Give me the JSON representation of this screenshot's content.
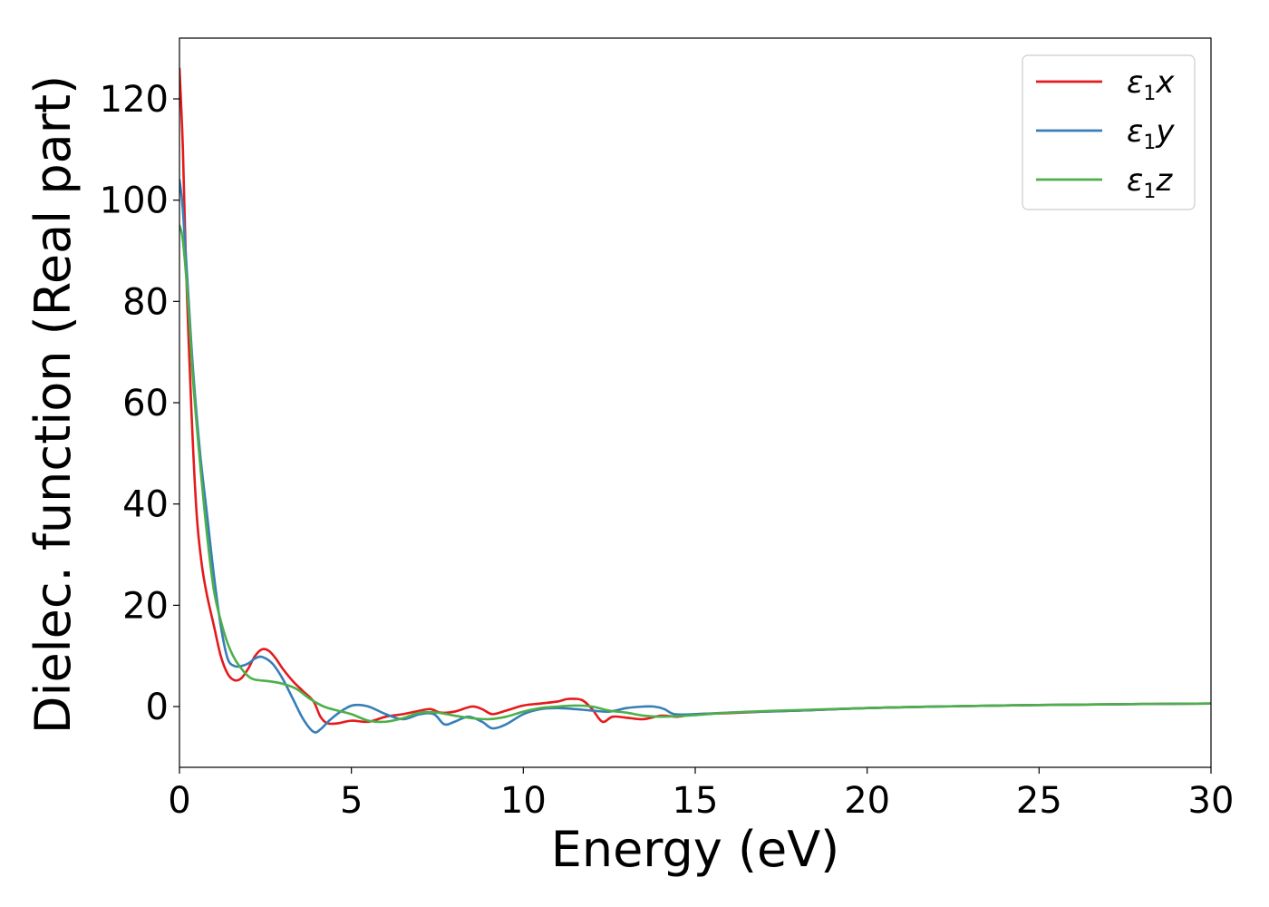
{
  "chart_data": {
    "type": "line",
    "title": "",
    "xlabel": "Energy (eV)",
    "ylabel": "Dielec. function (Real part)",
    "xlim": [
      0,
      30
    ],
    "ylim": [
      -12,
      132
    ],
    "xticks": [
      0,
      5,
      10,
      15,
      20,
      25,
      30
    ],
    "yticks": [
      0,
      20,
      40,
      60,
      80,
      100,
      120
    ],
    "grid": false,
    "legend_position": "top-right",
    "series": [
      {
        "name": "ε1x",
        "legend_base": "ε",
        "legend_sub": "1",
        "legend_tail": "x",
        "color": "#e41a1c",
        "points": [
          [
            0.0,
            126
          ],
          [
            0.1,
            110
          ],
          [
            0.2,
            85
          ],
          [
            0.35,
            58
          ],
          [
            0.5,
            38
          ],
          [
            0.65,
            28
          ],
          [
            0.8,
            22
          ],
          [
            1.0,
            16
          ],
          [
            1.2,
            10
          ],
          [
            1.4,
            6.5
          ],
          [
            1.6,
            5.2
          ],
          [
            1.8,
            5.6
          ],
          [
            2.0,
            7.5
          ],
          [
            2.2,
            10
          ],
          [
            2.4,
            11.3
          ],
          [
            2.6,
            11
          ],
          [
            2.8,
            9.5
          ],
          [
            3.0,
            7.5
          ],
          [
            3.3,
            5
          ],
          [
            3.6,
            3
          ],
          [
            3.9,
            1
          ],
          [
            4.1,
            -2
          ],
          [
            4.3,
            -3.3
          ],
          [
            4.6,
            -3.3
          ],
          [
            5.0,
            -2.8
          ],
          [
            5.5,
            -3
          ],
          [
            6.0,
            -2
          ],
          [
            6.5,
            -1.5
          ],
          [
            7.0,
            -0.8
          ],
          [
            7.3,
            -0.5
          ],
          [
            7.6,
            -1.2
          ],
          [
            8.0,
            -1
          ],
          [
            8.5,
            0
          ],
          [
            8.8,
            -0.5
          ],
          [
            9.1,
            -1.5
          ],
          [
            9.5,
            -0.8
          ],
          [
            10.0,
            0.2
          ],
          [
            10.5,
            0.6
          ],
          [
            11.0,
            1
          ],
          [
            11.3,
            1.5
          ],
          [
            11.7,
            1.3
          ],
          [
            12.0,
            -0.5
          ],
          [
            12.3,
            -3
          ],
          [
            12.6,
            -2
          ],
          [
            13.0,
            -2.2
          ],
          [
            13.5,
            -2.5
          ],
          [
            14.0,
            -1.8
          ],
          [
            14.5,
            -2
          ],
          [
            15.0,
            -1.5
          ],
          [
            16.0,
            -1.3
          ],
          [
            17.0,
            -1
          ],
          [
            18.0,
            -0.8
          ],
          [
            20.0,
            -0.3
          ],
          [
            22.0,
            0
          ],
          [
            25.0,
            0.3
          ],
          [
            28.0,
            0.5
          ],
          [
            30.0,
            0.6
          ]
        ]
      },
      {
        "name": "ε1y",
        "legend_base": "ε",
        "legend_sub": "1",
        "legend_tail": "y",
        "color": "#377eb8",
        "points": [
          [
            0.0,
            104
          ],
          [
            0.1,
            98
          ],
          [
            0.25,
            82
          ],
          [
            0.4,
            66
          ],
          [
            0.6,
            50
          ],
          [
            0.8,
            38
          ],
          [
            1.0,
            26
          ],
          [
            1.2,
            16
          ],
          [
            1.4,
            9.5
          ],
          [
            1.6,
            8
          ],
          [
            1.8,
            8
          ],
          [
            2.0,
            8.5
          ],
          [
            2.2,
            9.5
          ],
          [
            2.4,
            9.8
          ],
          [
            2.7,
            8.5
          ],
          [
            3.0,
            5.5
          ],
          [
            3.3,
            1.5
          ],
          [
            3.6,
            -2.5
          ],
          [
            3.9,
            -5
          ],
          [
            4.1,
            -4.5
          ],
          [
            4.4,
            -2.5
          ],
          [
            4.8,
            -0.5
          ],
          [
            5.1,
            0.3
          ],
          [
            5.5,
            0
          ],
          [
            6.0,
            -1.5
          ],
          [
            6.5,
            -2.5
          ],
          [
            7.0,
            -1.5
          ],
          [
            7.4,
            -1.5
          ],
          [
            7.7,
            -3.5
          ],
          [
            8.0,
            -3
          ],
          [
            8.4,
            -2
          ],
          [
            8.8,
            -3
          ],
          [
            9.1,
            -4.3
          ],
          [
            9.5,
            -3.5
          ],
          [
            10.0,
            -1.5
          ],
          [
            10.5,
            -0.5
          ],
          [
            11.0,
            -0.3
          ],
          [
            11.5,
            -0.5
          ],
          [
            12.0,
            -0.8
          ],
          [
            12.5,
            -1
          ],
          [
            13.0,
            -0.3
          ],
          [
            13.5,
            0
          ],
          [
            13.8,
            0
          ],
          [
            14.1,
            -0.5
          ],
          [
            14.4,
            -1.5
          ],
          [
            15.0,
            -1.5
          ],
          [
            16.0,
            -1.2
          ],
          [
            17.0,
            -1
          ],
          [
            18.0,
            -0.8
          ],
          [
            20.0,
            -0.3
          ],
          [
            22.0,
            0
          ],
          [
            25.0,
            0.3
          ],
          [
            28.0,
            0.5
          ],
          [
            30.0,
            0.6
          ]
        ]
      },
      {
        "name": "ε1z",
        "legend_base": "ε",
        "legend_sub": "1",
        "legend_tail": "z",
        "color": "#4daf4a",
        "points": [
          [
            0.0,
            95
          ],
          [
            0.1,
            92
          ],
          [
            0.25,
            80
          ],
          [
            0.4,
            64
          ],
          [
            0.6,
            48
          ],
          [
            0.8,
            34
          ],
          [
            1.0,
            23
          ],
          [
            1.2,
            17
          ],
          [
            1.4,
            12.5
          ],
          [
            1.6,
            9.5
          ],
          [
            1.8,
            7.5
          ],
          [
            2.0,
            6
          ],
          [
            2.2,
            5.3
          ],
          [
            2.6,
            5
          ],
          [
            3.0,
            4.5
          ],
          [
            3.4,
            3.5
          ],
          [
            3.8,
            1.5
          ],
          [
            4.2,
            0
          ],
          [
            4.6,
            -0.8
          ],
          [
            5.0,
            -1.5
          ],
          [
            5.5,
            -2.8
          ],
          [
            6.0,
            -3
          ],
          [
            6.5,
            -2.3
          ],
          [
            7.0,
            -1.2
          ],
          [
            7.5,
            -1.2
          ],
          [
            8.0,
            -1.8
          ],
          [
            8.5,
            -2.3
          ],
          [
            9.0,
            -2.5
          ],
          [
            9.5,
            -2
          ],
          [
            10.0,
            -1
          ],
          [
            10.5,
            -0.3
          ],
          [
            11.0,
            0
          ],
          [
            11.5,
            0.2
          ],
          [
            12.0,
            0
          ],
          [
            12.5,
            -0.8
          ],
          [
            13.0,
            -1.2
          ],
          [
            13.5,
            -1.8
          ],
          [
            14.0,
            -2
          ],
          [
            14.5,
            -1.9
          ],
          [
            15.0,
            -1.7
          ],
          [
            16.0,
            -1.2
          ],
          [
            17.0,
            -0.9
          ],
          [
            18.0,
            -0.7
          ],
          [
            20.0,
            -0.3
          ],
          [
            22.0,
            0
          ],
          [
            25.0,
            0.3
          ],
          [
            28.0,
            0.5
          ],
          [
            30.0,
            0.6
          ]
        ]
      }
    ]
  }
}
